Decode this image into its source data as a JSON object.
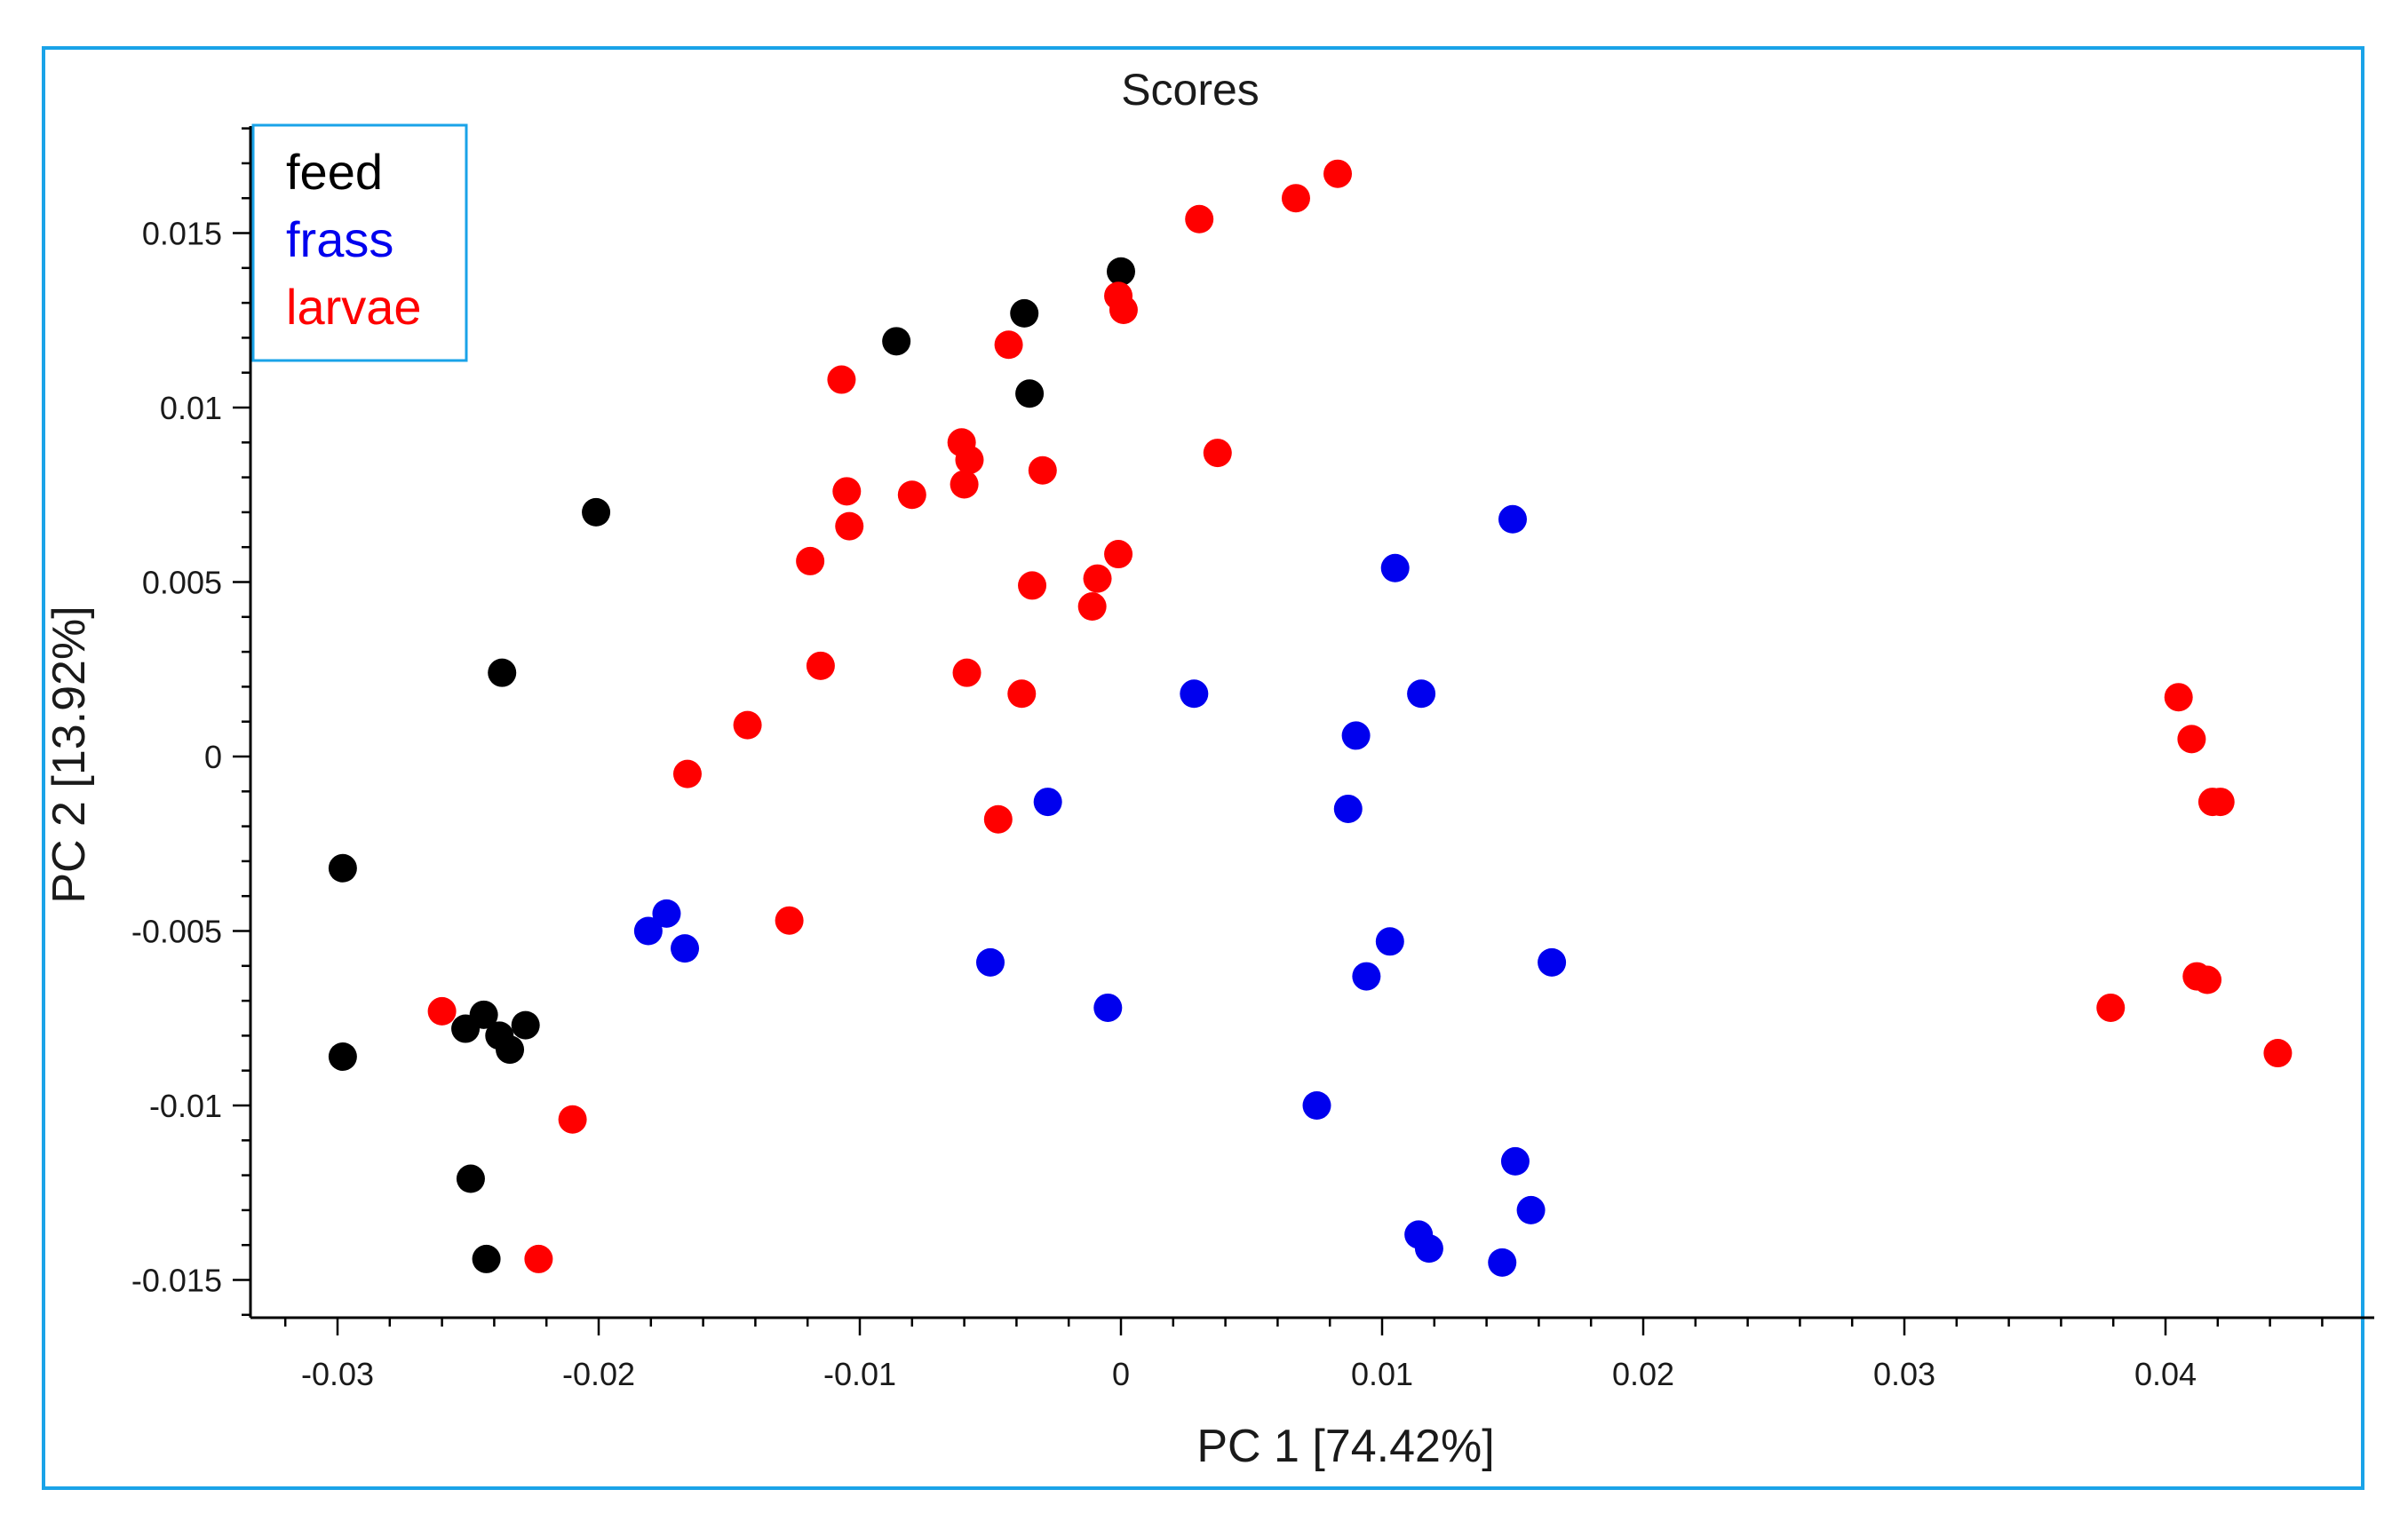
{
  "colors": {
    "frame": "#1aa3e8",
    "legend_border": "#1aa3e8",
    "axis": "#000000",
    "text": "#1a1a1a",
    "background": "#ffffff"
  },
  "chart_data": {
    "type": "scatter",
    "title": "Scores",
    "xlabel": "PC 1 [74.42%]",
    "ylabel": "PC 2 [13.92%]",
    "xlim": [
      -0.0335,
      0.0485
    ],
    "ylim": [
      -0.016,
      0.018
    ],
    "xticks": [
      -0.03,
      -0.02,
      -0.01,
      0,
      0.01,
      0.02,
      0.03,
      0.04
    ],
    "xtick_labels": [
      "-0.03",
      "-0.02",
      "-0.01",
      "0",
      "0.01",
      "0.02",
      "0.03",
      "0.04"
    ],
    "yticks": [
      0.015,
      0.01,
      0.005,
      0,
      -0.005,
      -0.01,
      -0.015
    ],
    "ytick_labels": [
      "0.015",
      "0.01",
      "0.005",
      "0",
      "-0.005",
      "-0.01",
      "-0.015"
    ],
    "grid": false,
    "legend_position": "top-left",
    "series": [
      {
        "name": "feed",
        "color": "#000000",
        "points": [
          [
            0.0,
            0.0139
          ],
          [
            -0.0037,
            0.0127
          ],
          [
            -0.0086,
            0.0119
          ],
          [
            -0.0035,
            0.0104
          ],
          [
            -0.0201,
            0.007
          ],
          [
            -0.0237,
            0.0024
          ],
          [
            -0.0298,
            -0.0032
          ],
          [
            -0.0298,
            -0.0086
          ],
          [
            -0.0251,
            -0.0078
          ],
          [
            -0.0244,
            -0.0074
          ],
          [
            -0.0238,
            -0.008
          ],
          [
            -0.0234,
            -0.0084
          ],
          [
            -0.0228,
            -0.0077
          ],
          [
            -0.0249,
            -0.0121
          ],
          [
            -0.0243,
            -0.0144
          ]
        ]
      },
      {
        "name": "frass",
        "color": "#0000ee",
        "points": [
          [
            0.015,
            0.0068
          ],
          [
            0.0105,
            0.0054
          ],
          [
            0.0028,
            0.0018
          ],
          [
            0.0115,
            0.0018
          ],
          [
            0.009,
            0.0006
          ],
          [
            -0.0028,
            -0.0013
          ],
          [
            0.0087,
            -0.0015
          ],
          [
            -0.0174,
            -0.0045
          ],
          [
            -0.0181,
            -0.005
          ],
          [
            -0.0167,
            -0.0055
          ],
          [
            -0.005,
            -0.0059
          ],
          [
            0.0103,
            -0.0053
          ],
          [
            0.0094,
            -0.0063
          ],
          [
            0.0165,
            -0.0059
          ],
          [
            -0.0005,
            -0.0072
          ],
          [
            0.0075,
            -0.01
          ],
          [
            0.0151,
            -0.0116
          ],
          [
            0.0157,
            -0.013
          ],
          [
            0.0114,
            -0.0137
          ],
          [
            0.0118,
            -0.0141
          ],
          [
            0.0146,
            -0.0145
          ]
        ]
      },
      {
        "name": "larvae",
        "color": "#ff0000",
        "points": [
          [
            0.0083,
            0.0167
          ],
          [
            0.0067,
            0.016
          ],
          [
            0.003,
            0.0154
          ],
          [
            -0.0001,
            0.0132
          ],
          [
            0.0001,
            0.0128
          ],
          [
            -0.0043,
            0.0118
          ],
          [
            -0.0107,
            0.0108
          ],
          [
            -0.0061,
            0.009
          ],
          [
            -0.0058,
            0.0085
          ],
          [
            -0.006,
            0.0078
          ],
          [
            -0.003,
            0.0082
          ],
          [
            0.0037,
            0.0087
          ],
          [
            -0.008,
            0.0075
          ],
          [
            -0.0105,
            0.0076
          ],
          [
            -0.0104,
            0.0066
          ],
          [
            -0.0119,
            0.0056
          ],
          [
            -0.0001,
            0.0058
          ],
          [
            -0.0009,
            0.0051
          ],
          [
            -0.0034,
            0.0049
          ],
          [
            -0.0011,
            0.0043
          ],
          [
            -0.0115,
            0.0026
          ],
          [
            -0.0059,
            0.0024
          ],
          [
            -0.0038,
            0.0018
          ],
          [
            -0.0143,
            0.0009
          ],
          [
            -0.0166,
            -0.0005
          ],
          [
            -0.0047,
            -0.0018
          ],
          [
            -0.0127,
            -0.0047
          ],
          [
            -0.026,
            -0.0073
          ],
          [
            -0.021,
            -0.0104
          ],
          [
            -0.0223,
            -0.0144
          ],
          [
            0.0405,
            0.0017
          ],
          [
            0.041,
            0.0005
          ],
          [
            0.0418,
            -0.0013
          ],
          [
            0.0421,
            -0.0013
          ],
          [
            0.0412,
            -0.0063
          ],
          [
            0.0416,
            -0.0064
          ],
          [
            0.0379,
            -0.0072
          ],
          [
            0.0443,
            -0.0085
          ]
        ]
      }
    ]
  }
}
